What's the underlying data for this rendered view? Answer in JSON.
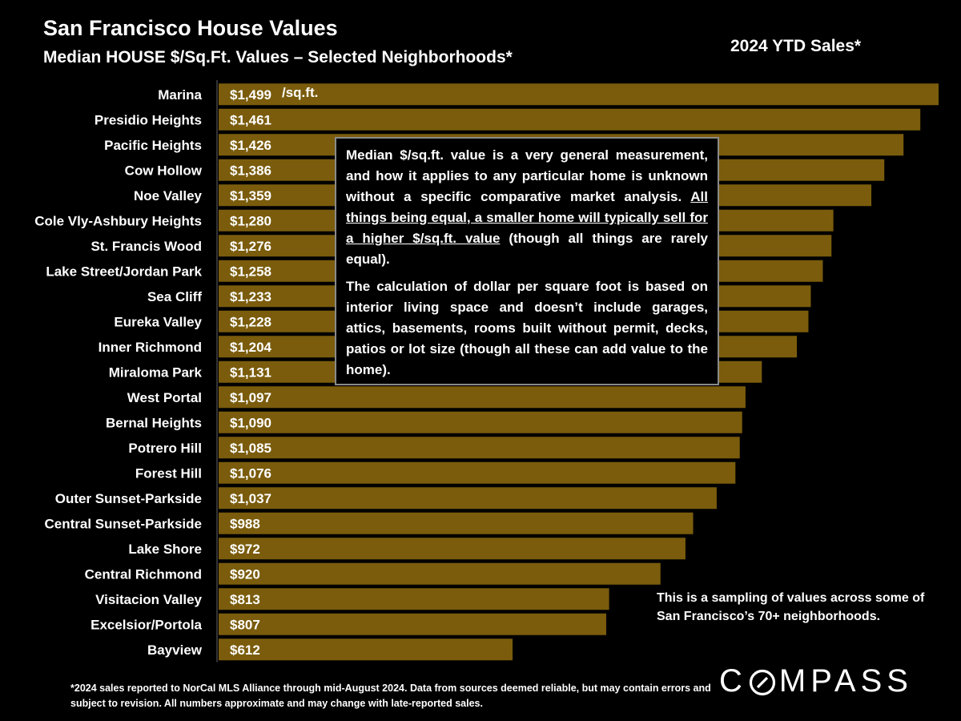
{
  "header": {
    "title": "San Francisco House Values",
    "subtitle": "Median HOUSE $/Sq.Ft. Values – Selected Neighborhoods*",
    "period": "2024 YTD Sales*"
  },
  "chart_data": {
    "type": "bar",
    "orientation": "horizontal",
    "title": "San Francisco House Values",
    "ylabel": "",
    "xlabel": "",
    "unit_label": "/sq.ft.",
    "xlim": [
      0,
      1499
    ],
    "bar_color": "#7a5c0c",
    "categories": [
      "Marina",
      "Presidio Heights",
      "Pacific Heights",
      "Cow Hollow",
      "Noe Valley",
      "Cole Vly-Ashbury Heights",
      "St. Francis Wood",
      "Lake Street/Jordan Park",
      "Sea Cliff",
      "Eureka Valley",
      "Inner Richmond",
      "Miraloma Park",
      "West Portal",
      "Bernal Heights",
      "Potrero Hill",
      "Forest Hill",
      "Outer Sunset-Parkside",
      "Central Sunset-Parkside",
      "Lake Shore",
      "Central Richmond",
      "Visitacion Valley",
      "Excelsior/Portola",
      "Bayview"
    ],
    "values": [
      1499,
      1461,
      1426,
      1386,
      1359,
      1280,
      1276,
      1258,
      1233,
      1228,
      1204,
      1131,
      1097,
      1090,
      1085,
      1076,
      1037,
      988,
      972,
      920,
      813,
      807,
      612
    ],
    "value_labels": [
      "$1,499",
      "$1,461",
      "$1,426",
      "$1,386",
      "$1,359",
      "$1,280",
      "$1,276",
      "$1,258",
      "$1,233",
      "$1,228",
      "$1,204",
      "$1,131",
      "$1,097",
      "$1,090",
      "$1,085",
      "$1,076",
      "$1,037",
      "$988",
      "$972",
      "$920",
      "$813",
      "$807",
      "$612"
    ]
  },
  "note": {
    "p1_a": "Median $/sq.ft. value is a very general measurement, and how it applies to any particular home is unknown without a specific comparative market analysis. ",
    "p1_underlined": "All things being equal, a smaller home will typically sell for a higher $/sq.ft. value",
    "p1_b": " (though all things are rarely equal).",
    "p2": "The calculation of dollar per square foot is based on interior living space and doesn’t include garages, attics, basements, rooms built without permit, decks, patios or lot size (though all these can add value to the home)."
  },
  "sampling_note": "This is a sampling of values across some of San Francisco’s 70+ neighborhoods.",
  "footnote": "*2024 sales reported to NorCal MLS Alliance through mid-August 2024. Data from sources deemed reliable, but may contain errors and subject to revision. All numbers approximate and may change with late-reported sales.",
  "logo": {
    "left": "C",
    "right": "MPASS",
    "icon": "compass-o-icon"
  }
}
